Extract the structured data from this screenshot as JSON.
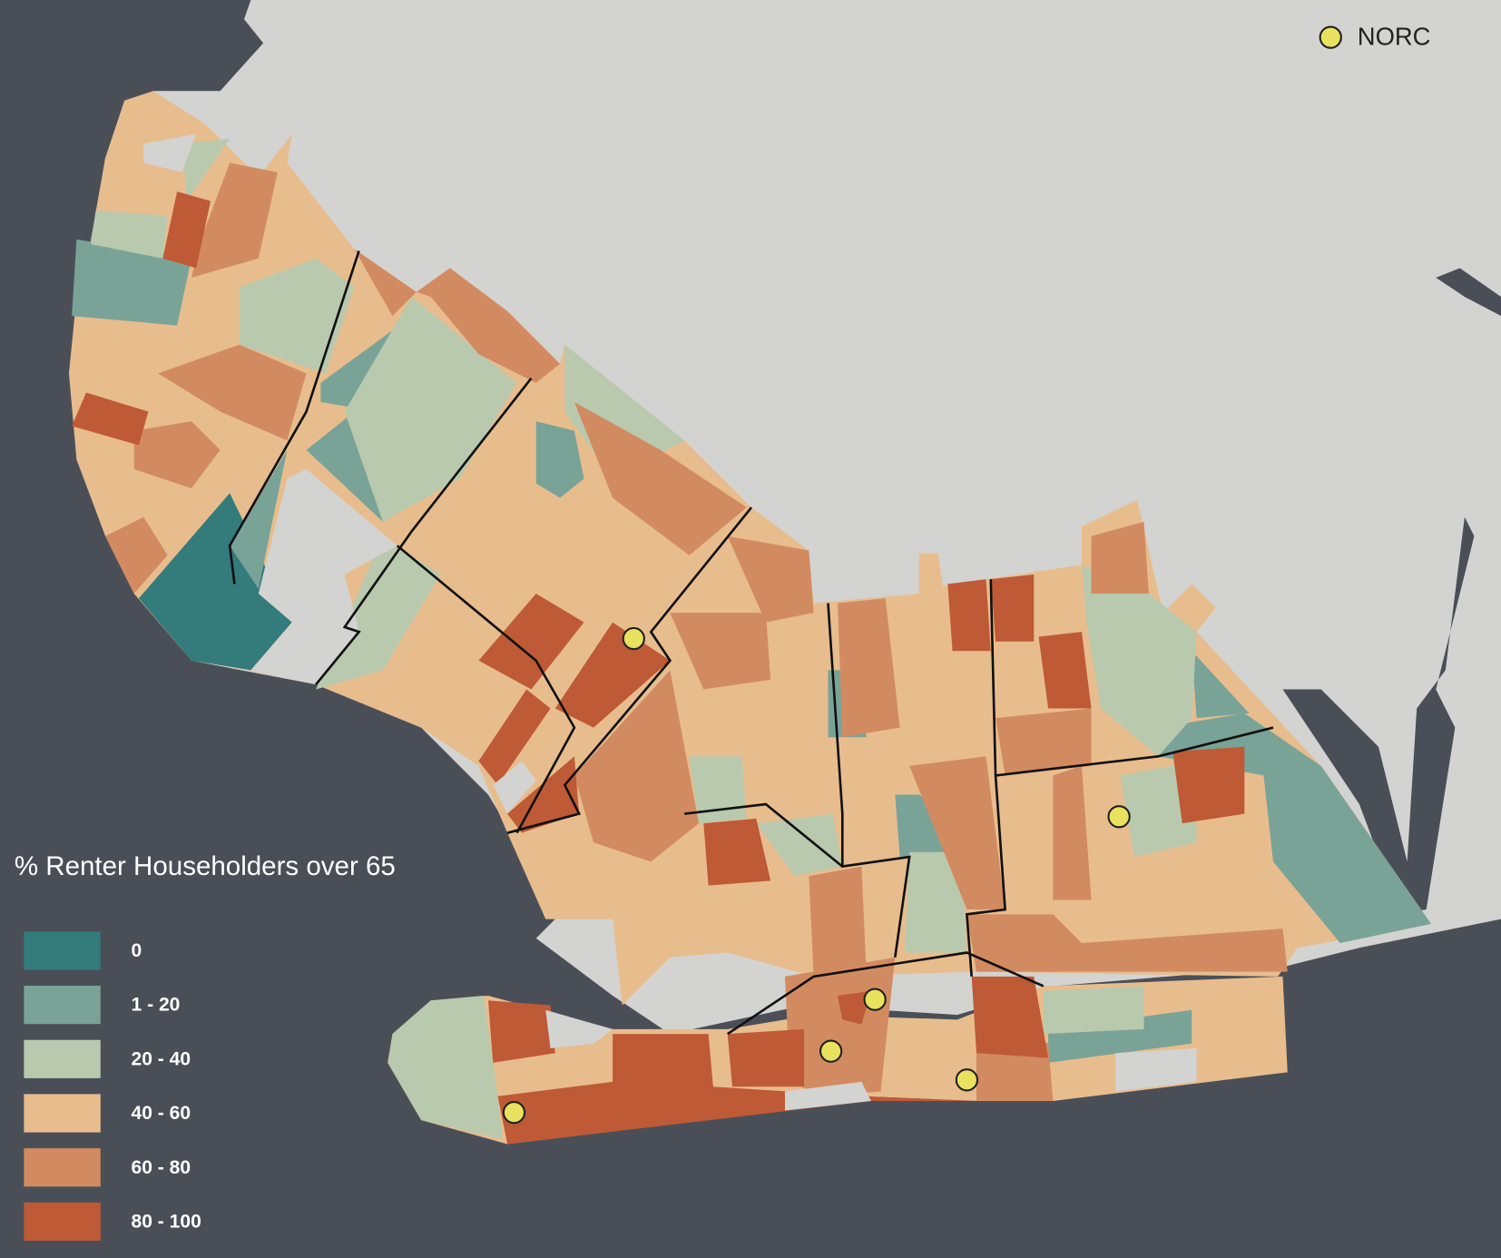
{
  "legend": {
    "title": "% Renter Householders over 65",
    "items": [
      {
        "label": "0",
        "color": "#347b7c"
      },
      {
        "label": "1 - 20",
        "color": "#7aa398"
      },
      {
        "label": "20 - 40",
        "color": "#b9c9ae"
      },
      {
        "label": "40 - 60",
        "color": "#e8bd8e"
      },
      {
        "label": "60 - 80",
        "color": "#d28b61"
      },
      {
        "label": "80 - 100",
        "color": "#bf5a36"
      }
    ]
  },
  "key": {
    "label": "NORC",
    "color": "#e8e25f"
  }
}
